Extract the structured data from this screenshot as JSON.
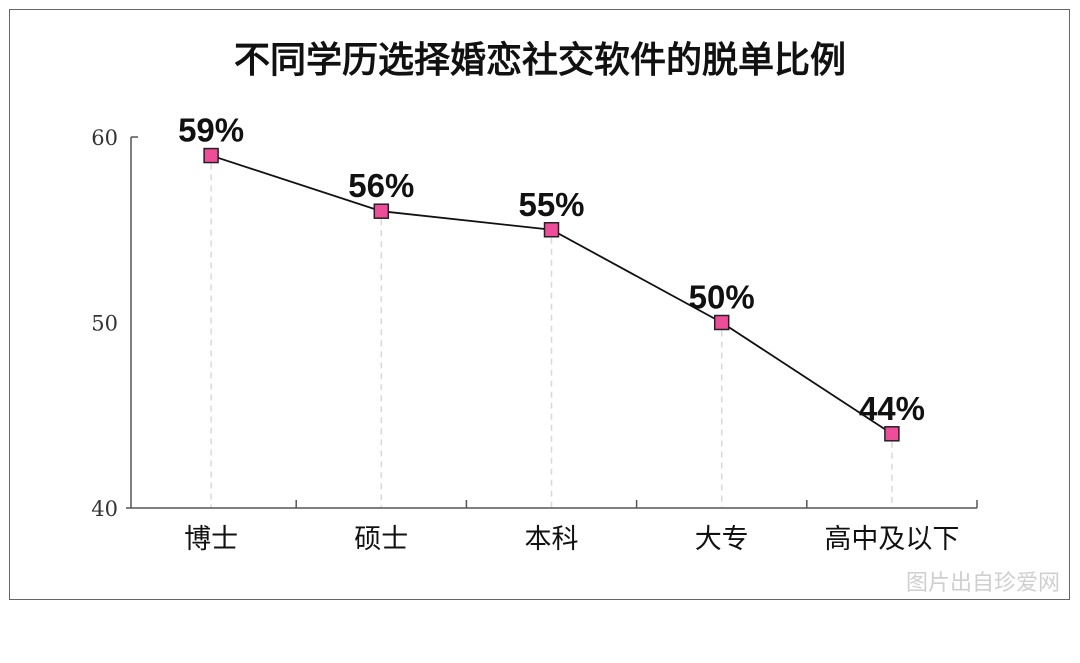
{
  "chart_data": {
    "type": "line",
    "title": "不同学历选择婚恋社交软件的脱单比例",
    "categories": [
      "博士",
      "硕士",
      "本科",
      "大专",
      "高中及以下"
    ],
    "values": [
      59,
      56,
      55,
      50,
      44
    ],
    "data_labels": [
      "59%",
      "56%",
      "55%",
      "50%",
      "44%"
    ],
    "yticks": [
      40,
      50,
      60
    ],
    "ylim": [
      40,
      60
    ],
    "xlabel": "",
    "ylabel": "",
    "grid": false,
    "marker": "square",
    "colors": {
      "line": "#111111",
      "marker_fill": "#ee4d9a",
      "marker_edge": "#222222",
      "guide": "#d8d8d8"
    }
  },
  "watermark": "图片出自珍爱网"
}
